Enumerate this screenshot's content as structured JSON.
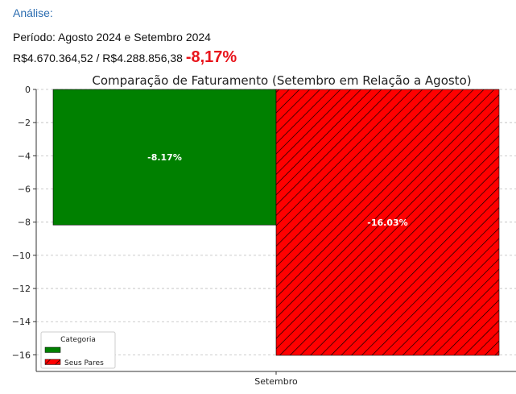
{
  "header": {
    "analysis_label": "Análise:",
    "period_text": "Período: Agosto 2024 e Setembro 2024",
    "values_text": "R$4.670.364,52 / R$4.288.856,38",
    "pct_change": "-8,17%",
    "pct_change_color": "#e8141b"
  },
  "chart_data": {
    "type": "bar",
    "title": "Comparação de Faturamento (Setembro em Relação a Agosto)",
    "categories": [
      "Setembro"
    ],
    "xlabel": "",
    "ylabel": "",
    "ylim": [
      -17,
      0
    ],
    "yticks": [
      0,
      -2,
      -4,
      -6,
      -8,
      -10,
      -12,
      -14,
      -16
    ],
    "grid": true,
    "legend_title": "Categoria",
    "legend_position": "bottom-left",
    "series": [
      {
        "name": "",
        "values": [
          -8.17
        ],
        "label": "-8.17%",
        "color": "#008000",
        "hatch": false
      },
      {
        "name": "Seus Pares",
        "values": [
          -16.03
        ],
        "label": "-16.03%",
        "color": "#ff0000",
        "hatch": true
      }
    ]
  }
}
